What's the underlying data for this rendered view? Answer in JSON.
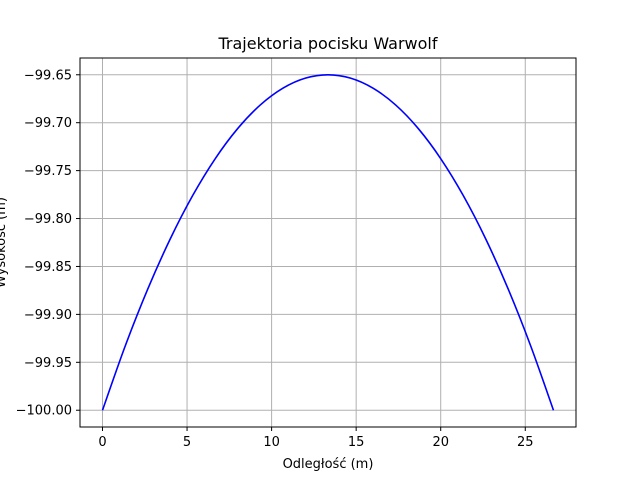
{
  "chart_data": {
    "type": "line",
    "title": "Trajektoria pocisku Warwolf",
    "xlabel": "Odległość (m)",
    "ylabel": "Wysokość (m)",
    "xlim": [
      -1.33,
      28.0
    ],
    "ylim": [
      -100.0175,
      -99.6325
    ],
    "xticks": [
      0,
      5,
      10,
      15,
      20,
      25
    ],
    "xtick_labels": [
      "0",
      "5",
      "10",
      "15",
      "20",
      "25"
    ],
    "yticks": [
      -100.0,
      -99.95,
      -99.9,
      -99.85,
      -99.8,
      -99.75,
      -99.7,
      -99.65
    ],
    "ytick_labels": [
      "−100.00",
      "−99.95",
      "−99.90",
      "−99.85",
      "−99.80",
      "−99.75",
      "−99.70",
      "−99.65"
    ],
    "grid": true,
    "series": [
      {
        "color": "#0000ff",
        "x": [
          0,
          1.333,
          2.667,
          4.0,
          5.333,
          6.667,
          8.0,
          9.333,
          10.667,
          12.0,
          13.333,
          14.667,
          16.0,
          17.333,
          18.667,
          20.0,
          21.333,
          22.667,
          24.0,
          25.333,
          26.667
        ],
        "y": [
          -100.0,
          -99.9335,
          -99.874,
          -99.8215,
          -99.776,
          -99.7375,
          -99.706,
          -99.6815,
          -99.664,
          -99.6535,
          -99.65,
          -99.6535,
          -99.664,
          -99.6815,
          -99.706,
          -99.7375,
          -99.776,
          -99.8215,
          -99.874,
          -99.9335,
          -100.0
        ]
      }
    ]
  }
}
